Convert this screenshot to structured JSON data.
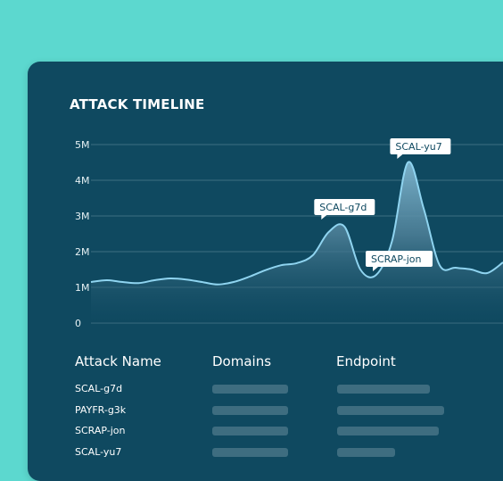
{
  "card": {
    "title": "ATTACK TIMELINE"
  },
  "chart_data": {
    "type": "area",
    "title": "ATTACK TIMELINE",
    "y_ticks": [
      "5M",
      "4M",
      "3M",
      "2M",
      "1M",
      "0"
    ],
    "ylim": [
      0,
      5
    ],
    "grid": true,
    "x": [
      0,
      1,
      2,
      3,
      4,
      5,
      6,
      7,
      8,
      9,
      10,
      11,
      12,
      13,
      14,
      15,
      16,
      17,
      18,
      19,
      20,
      21,
      22,
      23,
      24,
      25,
      26
    ],
    "series": [
      {
        "values": [
          1.15,
          1.2,
          1.15,
          1.12,
          1.2,
          1.25,
          1.22,
          1.15,
          1.08,
          1.15,
          1.3,
          1.48,
          1.62,
          1.68,
          1.9,
          2.55,
          2.7,
          1.5,
          1.35,
          2.3,
          4.5,
          3.2,
          1.62,
          1.55,
          1.5,
          1.4,
          1.7
        ]
      }
    ],
    "annotations": [
      {
        "label": "SCAL-g7d",
        "x": 16,
        "y": 2.7
      },
      {
        "label": "SCAL-yu7",
        "x": 20,
        "y": 4.5
      },
      {
        "label": "SCRAP-jon",
        "x": 19,
        "y": 2.3
      }
    ],
    "colors": {
      "line": "#8fd4f0",
      "fill_top": "#5f94b0",
      "grid": "#3d6f82"
    }
  },
  "table": {
    "headers": [
      "Attack Name",
      "Domains",
      "Endpoint"
    ],
    "rows": [
      {
        "name": "SCAL-g7d",
        "domains_fill": 0.85,
        "endpoint_fill": 0.8
      },
      {
        "name": "PAYFR-g3k",
        "domains_fill": 0.85,
        "endpoint_fill": 0.92
      },
      {
        "name": "SCRAP-jon",
        "domains_fill": 0.85,
        "endpoint_fill": 0.88
      },
      {
        "name": "SCAL-yu7",
        "domains_fill": 0.85,
        "endpoint_fill": 0.5
      }
    ]
  },
  "colors": {
    "background": "#5cd8cf",
    "panel": "#0f4960",
    "placeholder_bar": "#3e6d80"
  }
}
